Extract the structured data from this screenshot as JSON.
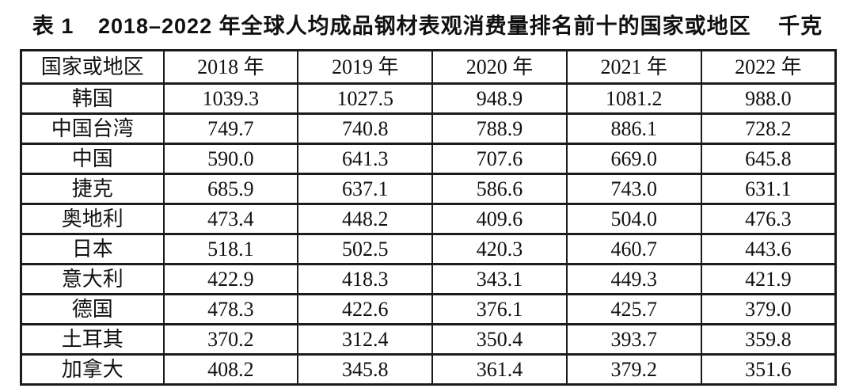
{
  "chart_data": {
    "type": "table",
    "caption": {
      "label": "表 1",
      "title": "2018–2022 年全球人均成品钢材表观消费量排名前十的国家或地区",
      "unit": "千克"
    },
    "columns": [
      "国家或地区",
      "2018 年",
      "2019 年",
      "2020 年",
      "2021 年",
      "2022 年"
    ],
    "rows": [
      {
        "cells": [
          "韩国",
          "1039.3",
          "1027.5",
          "948.9",
          "1081.2",
          "988.0"
        ]
      },
      {
        "cells": [
          "中国台湾",
          "749.7",
          "740.8",
          "788.9",
          "886.1",
          "728.2"
        ]
      },
      {
        "cells": [
          "中国",
          "590.0",
          "641.3",
          "707.6",
          "669.0",
          "645.8"
        ]
      },
      {
        "cells": [
          "捷克",
          "685.9",
          "637.1",
          "586.6",
          "743.0",
          "631.1"
        ]
      },
      {
        "cells": [
          "奥地利",
          "473.4",
          "448.2",
          "409.6",
          "504.0",
          "476.3"
        ]
      },
      {
        "cells": [
          "日本",
          "518.1",
          "502.5",
          "420.3",
          "460.7",
          "443.6"
        ]
      },
      {
        "cells": [
          "意大利",
          "422.9",
          "418.3",
          "343.1",
          "449.3",
          "421.9"
        ]
      },
      {
        "cells": [
          "德国",
          "478.3",
          "422.6",
          "376.1",
          "425.7",
          "379.0"
        ]
      },
      {
        "cells": [
          "土耳其",
          "370.2",
          "312.4",
          "350.4",
          "393.7",
          "359.8"
        ]
      },
      {
        "cells": [
          "加拿大",
          "408.2",
          "345.8",
          "361.4",
          "379.2",
          "351.6"
        ]
      }
    ],
    "layout": {
      "legend": "none",
      "grid": "full-borders",
      "text_color": "#111111",
      "border_color": "#1b1b1b",
      "background_color": "#ffffff"
    }
  }
}
